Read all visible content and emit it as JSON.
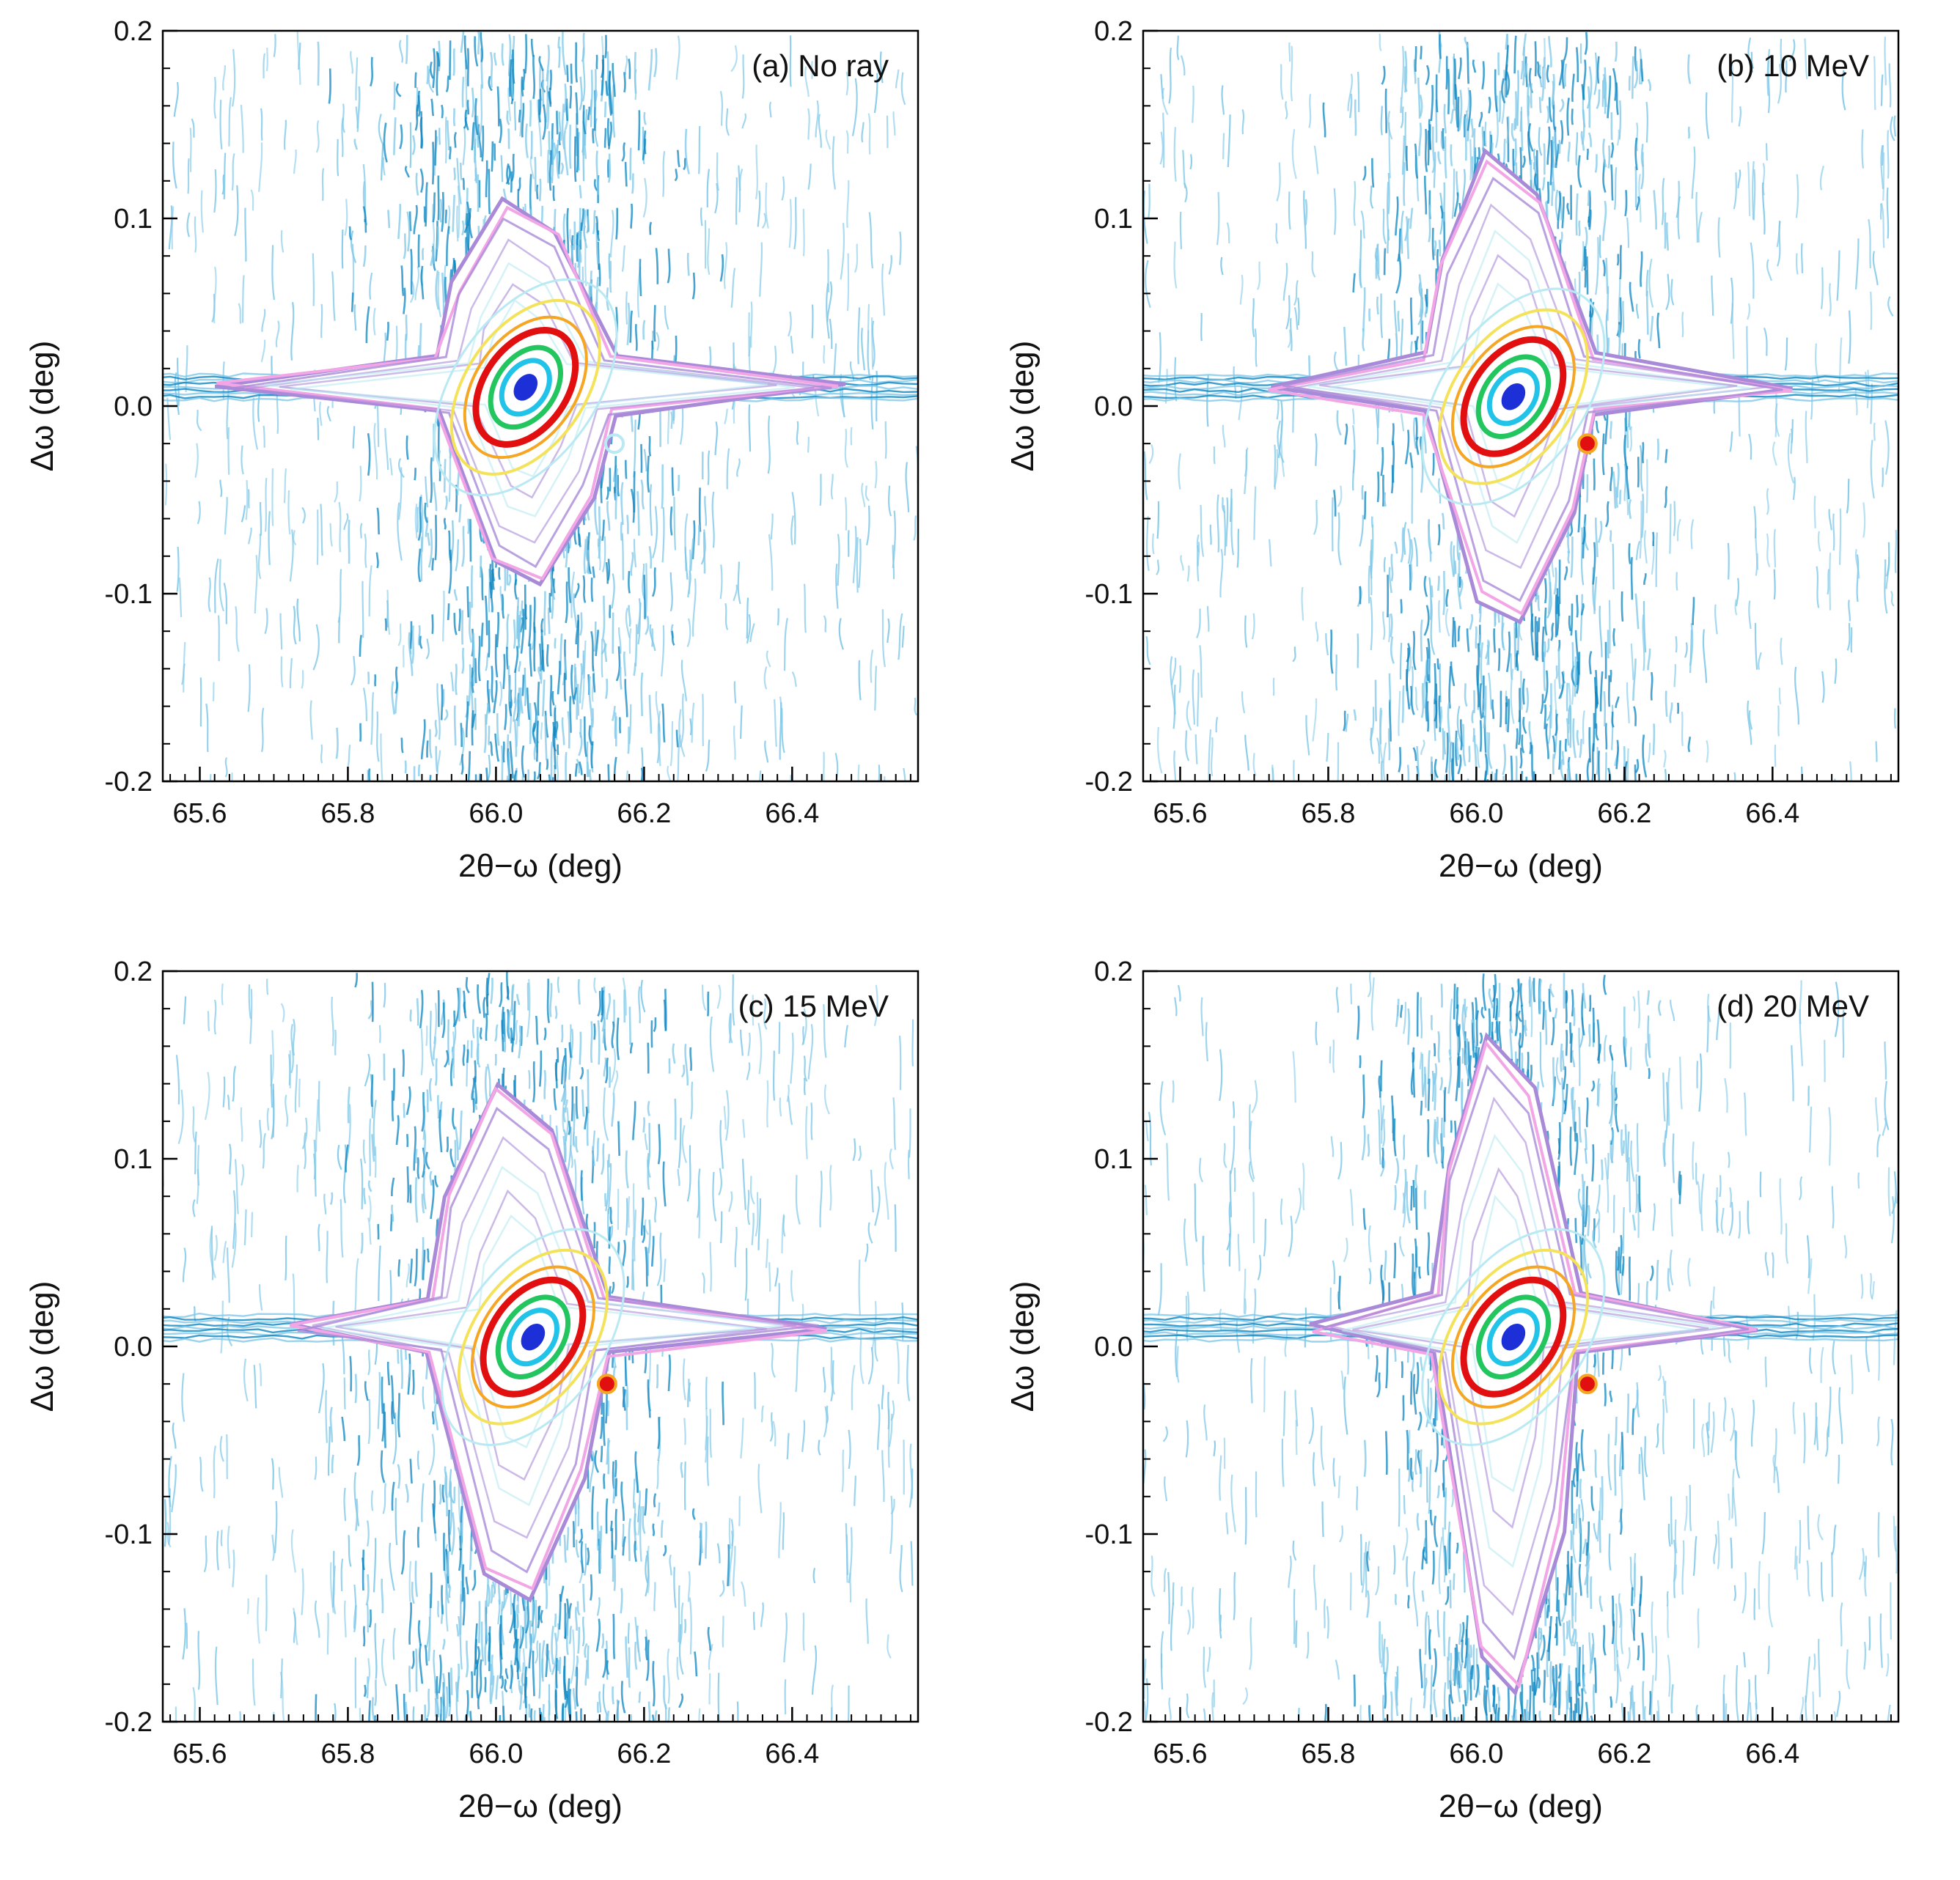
{
  "figure": {
    "background": "#ffffff",
    "palette": {
      "noise_light": "#7fc8e8",
      "noise_dark": "#0b86c2",
      "halo_violet": "#a98ad8",
      "halo_pink": "#f2a6e6",
      "inner_light": "#b9e9f2",
      "yellow": "#f4e35a",
      "orange": "#f5a623",
      "red": "#e10f0f",
      "green": "#22c55e",
      "cyan": "#21c3e8",
      "blue": "#1d2fd6"
    }
  },
  "chart_data": [
    {
      "type": "contour",
      "panel": "a",
      "title": "(a) No ray",
      "xlabel": "2θ−ω (deg)",
      "ylabel": "Δω (deg)",
      "xlim": [
        65.55,
        66.57
      ],
      "ylim": [
        -0.2,
        0.2
      ],
      "xticks": [
        "65.6",
        "65.8",
        "66.0",
        "66.2",
        "66.4"
      ],
      "yticks": [
        "-0.2",
        "-0.1",
        "0.0",
        "0.1",
        "0.2"
      ],
      "peak": {
        "x": 66.04,
        "y": 0.01
      },
      "streak": {
        "y": 0.01,
        "x_from": 65.62,
        "x_to": 66.47
      },
      "halo": {
        "x_min": 65.92,
        "x_max": 66.16,
        "y_min": -0.095,
        "y_max": 0.11
      },
      "secondary_peak": {
        "x": 66.16,
        "y": -0.02
      }
    },
    {
      "type": "contour",
      "panel": "b",
      "title": "(b) 10 MeV",
      "xlabel": "2θ−ω (deg)",
      "ylabel": "Δω (deg)",
      "xlim": [
        65.55,
        66.57
      ],
      "ylim": [
        -0.2,
        0.2
      ],
      "xticks": [
        "65.6",
        "65.8",
        "66.0",
        "66.2",
        "66.4"
      ],
      "yticks": [
        "-0.2",
        "-0.1",
        "0.0",
        "0.1",
        "0.2"
      ],
      "peak": {
        "x": 66.05,
        "y": 0.005
      },
      "streak": {
        "y": 0.01,
        "x_from": 65.72,
        "x_to": 66.43
      },
      "halo": {
        "x_min": 65.93,
        "x_max": 66.16,
        "y_min": -0.115,
        "y_max": 0.135
      },
      "secondary_peak": {
        "x": 66.15,
        "y": -0.02
      }
    },
    {
      "type": "contour",
      "panel": "c",
      "title": "(c) 15 MeV",
      "xlabel": "2θ−ω (deg)",
      "ylabel": "Δω (deg)",
      "xlim": [
        65.55,
        66.57
      ],
      "ylim": [
        -0.2,
        0.2
      ],
      "xticks": [
        "65.6",
        "65.8",
        "66.0",
        "66.2",
        "66.4"
      ],
      "yticks": [
        "-0.2",
        "-0.1",
        "0.0",
        "0.1",
        "0.2"
      ],
      "peak": {
        "x": 66.05,
        "y": 0.005
      },
      "streak": {
        "y": 0.01,
        "x_from": 65.72,
        "x_to": 66.45
      },
      "halo": {
        "x_min": 65.91,
        "x_max": 66.15,
        "y_min": -0.135,
        "y_max": 0.14
      },
      "secondary_peak": {
        "x": 66.15,
        "y": -0.02
      }
    },
    {
      "type": "contour",
      "panel": "d",
      "title": "(d) 20 MeV",
      "xlabel": "2θ−ω (deg)",
      "ylabel": "Δω (deg)",
      "xlim": [
        65.55,
        66.57
      ],
      "ylim": [
        -0.2,
        0.2
      ],
      "xticks": [
        "65.6",
        "65.8",
        "66.0",
        "66.2",
        "66.4"
      ],
      "yticks": [
        "-0.2",
        "-0.1",
        "0.0",
        "0.1",
        "0.2"
      ],
      "peak": {
        "x": 66.05,
        "y": 0.005
      },
      "streak": {
        "y": 0.01,
        "x_from": 65.78,
        "x_to": 66.38
      },
      "halo": {
        "x_min": 65.94,
        "x_max": 66.14,
        "y_min": -0.185,
        "y_max": 0.165
      },
      "secondary_peak": {
        "x": 66.15,
        "y": -0.02
      }
    }
  ]
}
